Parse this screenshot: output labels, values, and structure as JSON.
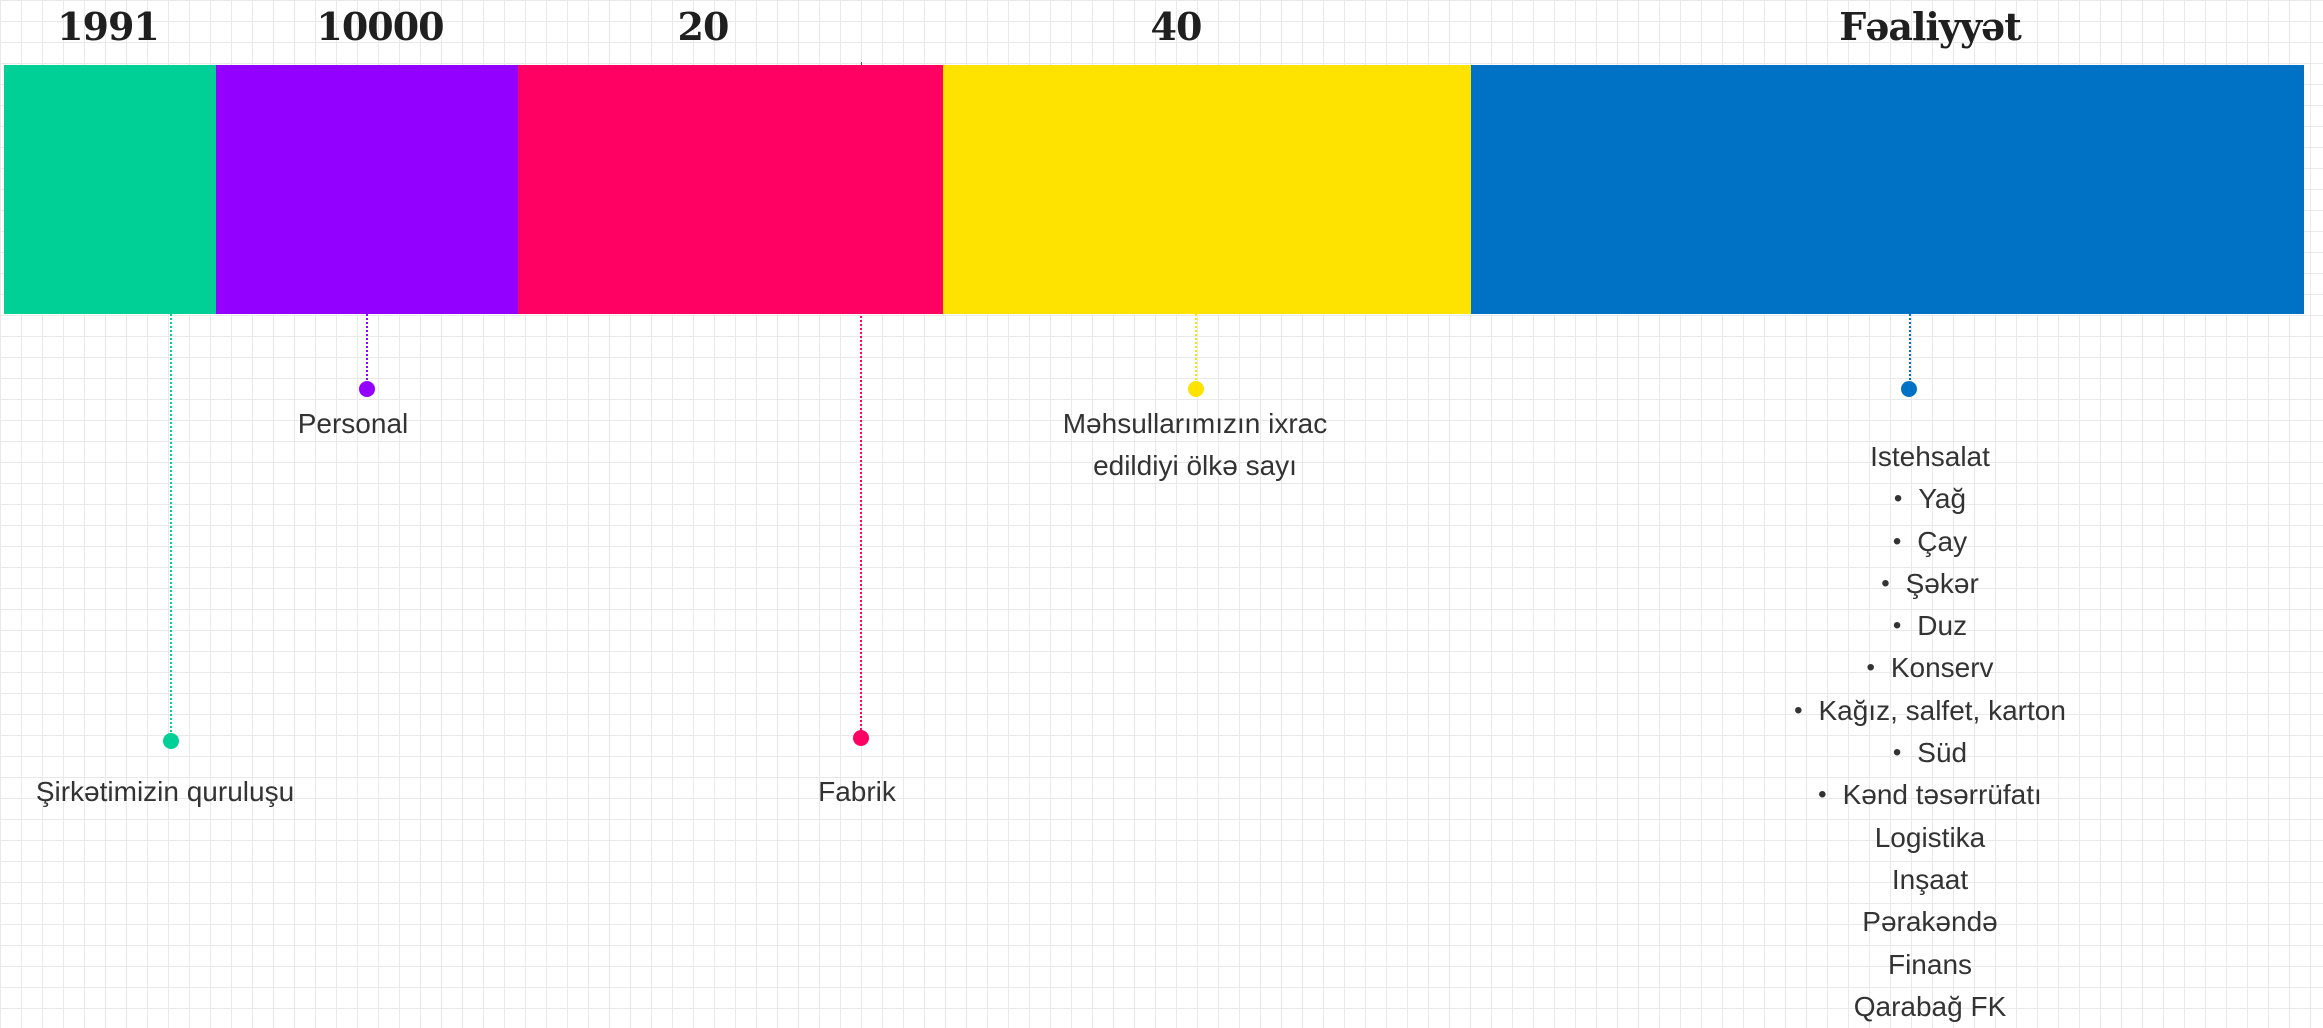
{
  "stats": {
    "founded": "1991",
    "staff": "10000",
    "factories": "20",
    "countries": "40",
    "activity": "Fəaliyyət"
  },
  "colors": {
    "green": "#00CF96",
    "purple": "#9400FF",
    "pink": "#FF0063",
    "yellow": "#FFE300",
    "blue": "#0072C6"
  },
  "captions": {
    "founded": "Şirkətimizin quruluşu",
    "staff": "Personal",
    "factories": "Fabrik",
    "countries_line1": "Məhsullarımızın ixrac",
    "countries_line2": "edildiyi ölkə sayı"
  },
  "activity": {
    "items": [
      {
        "label": "Istehsalat",
        "bullet": false
      },
      {
        "label": "Yağ",
        "bullet": true
      },
      {
        "label": "Çay",
        "bullet": true
      },
      {
        "label": "Şəkər",
        "bullet": true
      },
      {
        "label": "Duz",
        "bullet": true
      },
      {
        "label": "Konserv",
        "bullet": true
      },
      {
        "label": "Kağız, salfet, karton",
        "bullet": true
      },
      {
        "label": "Süd",
        "bullet": true
      },
      {
        "label": "Kənd təsərrüfatı",
        "bullet": true
      },
      {
        "label": "Logistika",
        "bullet": false
      },
      {
        "label": "Inşaat",
        "bullet": false
      },
      {
        "label": "Pərakəndə",
        "bullet": false
      },
      {
        "label": "Finans",
        "bullet": false
      },
      {
        "label": "Qarabağ FK",
        "bullet": false
      }
    ]
  }
}
